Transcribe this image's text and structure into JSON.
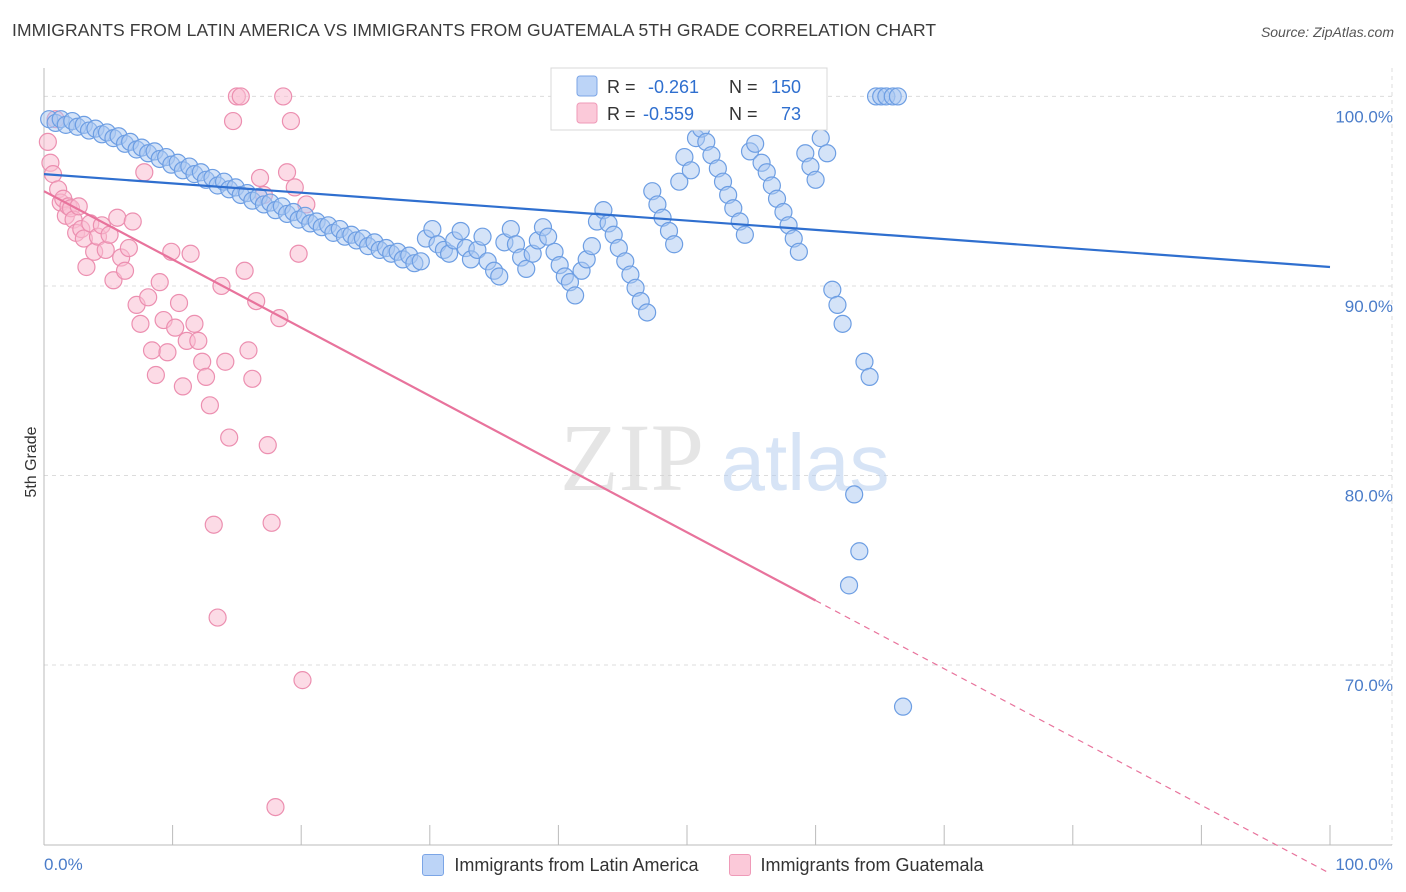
{
  "title": "IMMIGRANTS FROM LATIN AMERICA VS IMMIGRANTS FROM GUATEMALA 5TH GRADE CORRELATION CHART",
  "source": "Source: ZipAtlas.com",
  "watermark": {
    "zip": "ZIP",
    "atlas": "atlas"
  },
  "colors": {
    "blue_fill": "#aac8f2",
    "blue_stroke": "#6d9ee3",
    "blue_line": "#2f6fcf",
    "pink_fill": "#f9bdd1",
    "pink_stroke": "#ec8fb0",
    "pink_line": "#e8739c",
    "grid": "#dcdcdc",
    "axis_label": "#4a7cc9"
  },
  "legend_box": {
    "rows": [
      {
        "r_label": "R =",
        "r_value": "-0.261",
        "n_label": "N =",
        "n_value": "150"
      },
      {
        "r_label": "R =",
        "r_value": "-0.559",
        "n_label": "N =",
        "n_value": "73"
      }
    ]
  },
  "bottom_legend": [
    "Immigrants from Latin America",
    "Immigrants from Guatemala"
  ],
  "chart_data": {
    "type": "scatter",
    "title": "IMMIGRANTS FROM LATIN AMERICA VS IMMIGRANTS FROM GUATEMALA 5TH GRADE CORRELATION CHART",
    "xlabel": "",
    "ylabel": "5th Grade",
    "xlim": [
      0,
      100
    ],
    "ylim": [
      60.5,
      101.5
    ],
    "x_tick_labels": [
      "0.0%",
      "100.0%"
    ],
    "y_ticks": [
      70,
      80,
      90,
      100
    ],
    "y_tick_labels": [
      "70.0%",
      "80.0%",
      "90.0%",
      "100.0%"
    ],
    "series": [
      {
        "name": "Immigrants from Latin America",
        "R": -0.261,
        "N": 150,
        "trend": {
          "x0": 0,
          "y0": 95.9,
          "x1": 100,
          "y1": 91.0
        },
        "points": [
          [
            0.4,
            98.8
          ],
          [
            0.9,
            98.6
          ],
          [
            1.3,
            98.8
          ],
          [
            1.7,
            98.5
          ],
          [
            2.2,
            98.7
          ],
          [
            2.6,
            98.4
          ],
          [
            3.1,
            98.5
          ],
          [
            3.5,
            98.2
          ],
          [
            4.0,
            98.3
          ],
          [
            4.5,
            98.0
          ],
          [
            4.9,
            98.1
          ],
          [
            5.4,
            97.8
          ],
          [
            5.8,
            97.9
          ],
          [
            6.3,
            97.5
          ],
          [
            6.7,
            97.6
          ],
          [
            7.2,
            97.2
          ],
          [
            7.6,
            97.3
          ],
          [
            8.1,
            97.0
          ],
          [
            8.6,
            97.1
          ],
          [
            9.0,
            96.7
          ],
          [
            9.5,
            96.8
          ],
          [
            9.9,
            96.4
          ],
          [
            10.4,
            96.5
          ],
          [
            10.8,
            96.1
          ],
          [
            11.3,
            96.3
          ],
          [
            11.7,
            95.9
          ],
          [
            12.2,
            96.0
          ],
          [
            12.6,
            95.6
          ],
          [
            13.1,
            95.7
          ],
          [
            13.5,
            95.3
          ],
          [
            14.0,
            95.5
          ],
          [
            14.4,
            95.1
          ],
          [
            14.9,
            95.2
          ],
          [
            15.3,
            94.8
          ],
          [
            15.8,
            94.9
          ],
          [
            16.2,
            94.5
          ],
          [
            16.7,
            94.7
          ],
          [
            17.1,
            94.3
          ],
          [
            17.6,
            94.4
          ],
          [
            18.0,
            94.0
          ],
          [
            18.5,
            94.2
          ],
          [
            18.9,
            93.8
          ],
          [
            19.4,
            93.9
          ],
          [
            19.8,
            93.5
          ],
          [
            20.3,
            93.7
          ],
          [
            20.7,
            93.3
          ],
          [
            21.2,
            93.4
          ],
          [
            21.6,
            93.1
          ],
          [
            22.1,
            93.2
          ],
          [
            22.5,
            92.8
          ],
          [
            23.0,
            93.0
          ],
          [
            23.4,
            92.6
          ],
          [
            23.9,
            92.7
          ],
          [
            24.3,
            92.4
          ],
          [
            24.8,
            92.5
          ],
          [
            25.2,
            92.1
          ],
          [
            25.7,
            92.3
          ],
          [
            26.1,
            91.9
          ],
          [
            26.6,
            92.0
          ],
          [
            27.0,
            91.7
          ],
          [
            27.5,
            91.8
          ],
          [
            27.9,
            91.4
          ],
          [
            28.4,
            91.6
          ],
          [
            28.8,
            91.2
          ],
          [
            29.3,
            91.3
          ],
          [
            29.7,
            92.5
          ],
          [
            30.2,
            93.0
          ],
          [
            30.6,
            92.2
          ],
          [
            31.1,
            91.9
          ],
          [
            31.5,
            91.7
          ],
          [
            31.9,
            92.4
          ],
          [
            32.4,
            92.9
          ],
          [
            32.8,
            92.0
          ],
          [
            33.2,
            91.4
          ],
          [
            33.7,
            91.9
          ],
          [
            34.1,
            92.6
          ],
          [
            34.5,
            91.3
          ],
          [
            35.0,
            90.8
          ],
          [
            35.4,
            90.5
          ],
          [
            35.8,
            92.3
          ],
          [
            36.3,
            93.0
          ],
          [
            36.7,
            92.2
          ],
          [
            37.1,
            91.5
          ],
          [
            37.5,
            90.9
          ],
          [
            38.0,
            91.7
          ],
          [
            38.4,
            92.4
          ],
          [
            38.8,
            93.1
          ],
          [
            39.2,
            92.6
          ],
          [
            39.7,
            91.8
          ],
          [
            40.1,
            91.1
          ],
          [
            40.5,
            90.5
          ],
          [
            40.9,
            90.2
          ],
          [
            41.3,
            89.5
          ],
          [
            41.8,
            90.8
          ],
          [
            42.2,
            91.4
          ],
          [
            42.6,
            92.1
          ],
          [
            43.0,
            93.4
          ],
          [
            43.5,
            94.0
          ],
          [
            43.9,
            93.3
          ],
          [
            44.3,
            92.7
          ],
          [
            44.7,
            92.0
          ],
          [
            45.2,
            91.3
          ],
          [
            45.6,
            90.6
          ],
          [
            46.0,
            89.9
          ],
          [
            46.4,
            89.2
          ],
          [
            46.9,
            88.6
          ],
          [
            47.3,
            95.0
          ],
          [
            47.7,
            94.3
          ],
          [
            48.1,
            93.6
          ],
          [
            48.6,
            92.9
          ],
          [
            49.0,
            92.2
          ],
          [
            49.4,
            95.5
          ],
          [
            49.8,
            96.8
          ],
          [
            50.3,
            96.1
          ],
          [
            50.7,
            97.8
          ],
          [
            51.1,
            98.3
          ],
          [
            51.5,
            97.6
          ],
          [
            51.9,
            96.9
          ],
          [
            52.4,
            96.2
          ],
          [
            52.8,
            95.5
          ],
          [
            53.2,
            94.8
          ],
          [
            53.6,
            94.1
          ],
          [
            54.1,
            93.4
          ],
          [
            54.5,
            92.7
          ],
          [
            54.9,
            97.1
          ],
          [
            55.3,
            97.5
          ],
          [
            55.8,
            96.5
          ],
          [
            56.2,
            96.0
          ],
          [
            56.6,
            95.3
          ],
          [
            57.0,
            94.6
          ],
          [
            57.5,
            93.9
          ],
          [
            57.9,
            93.2
          ],
          [
            58.3,
            92.5
          ],
          [
            58.7,
            91.8
          ],
          [
            59.2,
            97.0
          ],
          [
            59.6,
            96.3
          ],
          [
            60.0,
            95.6
          ],
          [
            60.4,
            97.8
          ],
          [
            60.9,
            97.0
          ],
          [
            61.3,
            89.8
          ],
          [
            61.7,
            89.0
          ],
          [
            62.1,
            88.0
          ],
          [
            62.6,
            74.2
          ],
          [
            63.0,
            79.0
          ],
          [
            63.4,
            76.0
          ],
          [
            63.8,
            86.0
          ],
          [
            64.2,
            85.2
          ],
          [
            64.7,
            100.0
          ],
          [
            65.1,
            100.0
          ],
          [
            65.5,
            100.0
          ],
          [
            66.0,
            100.0
          ],
          [
            66.4,
            100.0
          ],
          [
            66.8,
            67.8
          ]
        ]
      },
      {
        "name": "Immigrants from Guatemala",
        "R": -0.559,
        "N": 73,
        "trend": {
          "x0": 0,
          "y0": 95.0,
          "x1": 60,
          "y1": 73.4
        },
        "trend_dashed": {
          "x0": 60,
          "y0": 73.4,
          "x1": 100,
          "y1": 59.0
        },
        "points": [
          [
            0.3,
            97.6
          ],
          [
            0.5,
            96.5
          ],
          [
            0.7,
            95.9
          ],
          [
            0.9,
            98.8
          ],
          [
            1.1,
            95.1
          ],
          [
            1.3,
            94.4
          ],
          [
            1.5,
            94.6
          ],
          [
            1.7,
            93.7
          ],
          [
            1.9,
            94.2
          ],
          [
            2.1,
            94.1
          ],
          [
            2.3,
            93.5
          ],
          [
            2.5,
            92.8
          ],
          [
            2.7,
            94.2
          ],
          [
            2.9,
            93.0
          ],
          [
            3.1,
            92.5
          ],
          [
            3.3,
            91.0
          ],
          [
            3.6,
            93.3
          ],
          [
            3.9,
            91.8
          ],
          [
            4.2,
            92.6
          ],
          [
            4.5,
            93.2
          ],
          [
            4.8,
            91.9
          ],
          [
            5.1,
            92.7
          ],
          [
            5.4,
            90.3
          ],
          [
            5.7,
            93.6
          ],
          [
            6.0,
            91.5
          ],
          [
            6.3,
            90.8
          ],
          [
            6.6,
            92.0
          ],
          [
            6.9,
            93.4
          ],
          [
            7.2,
            89.0
          ],
          [
            7.5,
            88.0
          ],
          [
            7.8,
            96.0
          ],
          [
            8.1,
            89.4
          ],
          [
            8.4,
            86.6
          ],
          [
            8.7,
            85.3
          ],
          [
            9.0,
            90.2
          ],
          [
            9.3,
            88.2
          ],
          [
            9.6,
            86.5
          ],
          [
            9.9,
            91.8
          ],
          [
            10.2,
            87.8
          ],
          [
            10.5,
            89.1
          ],
          [
            10.8,
            84.7
          ],
          [
            11.1,
            87.1
          ],
          [
            11.4,
            91.7
          ],
          [
            11.7,
            88.0
          ],
          [
            12.0,
            87.1
          ],
          [
            12.3,
            86.0
          ],
          [
            12.6,
            85.2
          ],
          [
            12.9,
            83.7
          ],
          [
            13.2,
            77.4
          ],
          [
            13.5,
            72.5
          ],
          [
            13.8,
            90.0
          ],
          [
            14.1,
            86.0
          ],
          [
            14.4,
            82.0
          ],
          [
            14.7,
            98.7
          ],
          [
            15.0,
            100.0
          ],
          [
            15.3,
            100.0
          ],
          [
            15.6,
            90.8
          ],
          [
            15.9,
            86.6
          ],
          [
            16.2,
            85.1
          ],
          [
            16.5,
            89.2
          ],
          [
            16.8,
            95.7
          ],
          [
            17.1,
            94.8
          ],
          [
            17.4,
            81.6
          ],
          [
            17.7,
            77.5
          ],
          [
            18.0,
            62.5
          ],
          [
            18.3,
            88.3
          ],
          [
            18.6,
            100.0
          ],
          [
            18.9,
            96.0
          ],
          [
            19.2,
            98.7
          ],
          [
            19.5,
            95.2
          ],
          [
            19.8,
            91.7
          ],
          [
            20.1,
            69.2
          ],
          [
            20.4,
            94.3
          ]
        ]
      }
    ]
  }
}
